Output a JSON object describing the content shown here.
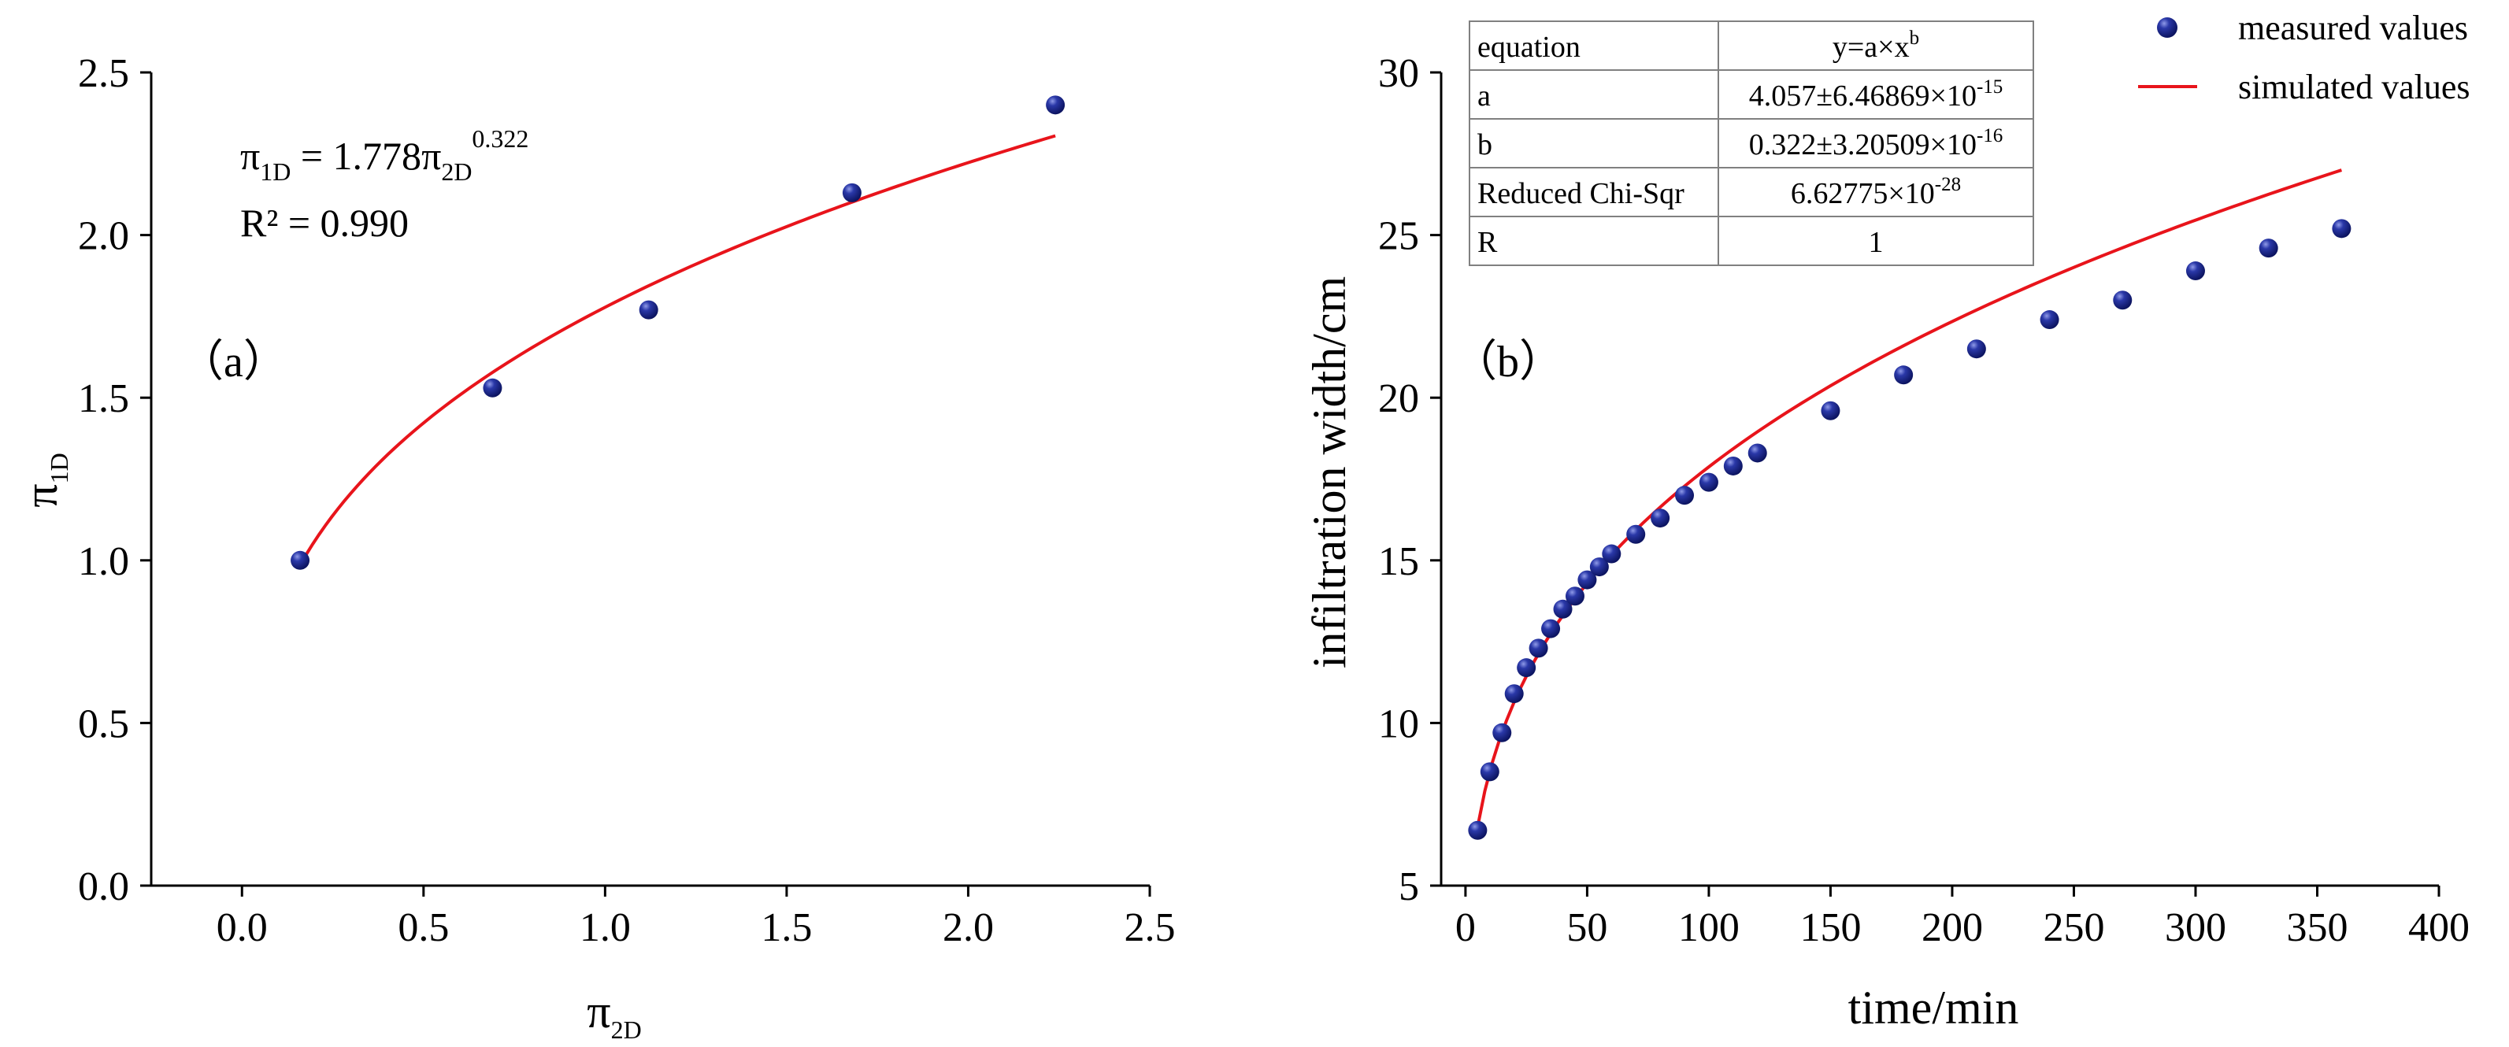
{
  "colors": {
    "point": "#1f2a8c",
    "fit": "#e8141b",
    "axis": "#000000"
  },
  "chart_data": [
    {
      "type": "scatter",
      "panel_label": "（a）",
      "xlabel": {
        "main": "π",
        "sub": "2D"
      },
      "ylabel": {
        "main": "π",
        "sub": "1D"
      },
      "xlim": [
        -0.25,
        2.5
      ],
      "ylim": [
        0,
        2.5
      ],
      "xticks": [
        0.0,
        0.5,
        1.0,
        1.5,
        2.0,
        2.5
      ],
      "xtick_labels": [
        "0.0",
        "0.5",
        "1.0",
        "1.5",
        "2.0",
        "2.5"
      ],
      "yticks": [
        0.0,
        0.5,
        1.0,
        1.5,
        2.0,
        2.5
      ],
      "ytick_labels": [
        "0.0",
        "0.5",
        "1.0",
        "1.5",
        "2.0",
        "2.5"
      ],
      "points": {
        "x": [
          0.16,
          0.69,
          1.12,
          1.68,
          2.24
        ],
        "y": [
          1.0,
          1.53,
          1.77,
          2.13,
          2.4
        ]
      },
      "fit": {
        "a": 1.778,
        "b": 0.322,
        "x_start": 0.16,
        "x_end": 2.24
      },
      "equation": {
        "lhs": "π",
        "lhs_sub": "1D",
        "eq": " = 1.778",
        "rhs": "π",
        "rhs_sub": "2D",
        "rhs_sup": "0.322"
      },
      "r2_text": "R² = 0.990"
    },
    {
      "type": "scatter",
      "panel_label": "（b）",
      "xlabel": "time/min",
      "ylabel": "infiltration width/cm",
      "xlim": [
        -10,
        400
      ],
      "ylim": [
        5,
        30
      ],
      "xticks": [
        0,
        50,
        100,
        150,
        200,
        250,
        300,
        350,
        400
      ],
      "xtick_labels": [
        "0",
        "50",
        "100",
        "150",
        "200",
        "250",
        "300",
        "350",
        "400"
      ],
      "yticks": [
        5,
        10,
        15,
        20,
        25,
        30
      ],
      "ytick_labels": [
        "5",
        "10",
        "15",
        "20",
        "25",
        "30"
      ],
      "points": {
        "x": [
          5,
          10,
          15,
          20,
          25,
          30,
          35,
          40,
          45,
          50,
          55,
          60,
          70,
          80,
          90,
          100,
          110,
          120,
          150,
          180,
          210,
          240,
          270,
          300,
          330,
          360
        ],
        "y": [
          6.7,
          8.5,
          9.7,
          10.9,
          11.7,
          12.3,
          12.9,
          13.5,
          13.9,
          14.4,
          14.8,
          15.2,
          15.8,
          16.3,
          17.0,
          17.4,
          17.9,
          18.3,
          19.6,
          20.7,
          21.5,
          22.4,
          23.0,
          23.9,
          24.6,
          25.2
        ]
      },
      "fit": {
        "a": 4.057,
        "b": 0.322,
        "x_start": 5,
        "x_end": 360
      },
      "legend": [
        {
          "label": "measured values",
          "kind": "marker"
        },
        {
          "label": "simulated values",
          "kind": "line"
        }
      ],
      "table": {
        "rows": [
          {
            "label": "equation",
            "value": "y=a×x",
            "sup": "b"
          },
          {
            "label": "a",
            "value": "4.057±6.46869×10",
            "sup": "-15"
          },
          {
            "label": "b",
            "value": "0.322±3.20509×10",
            "sup": "-16"
          },
          {
            "label": "Reduced Chi-Sqr",
            "value": "6.62775×10",
            "sup": "-28"
          },
          {
            "label": "R",
            "value": "1",
            "sup": ""
          }
        ]
      }
    }
  ]
}
